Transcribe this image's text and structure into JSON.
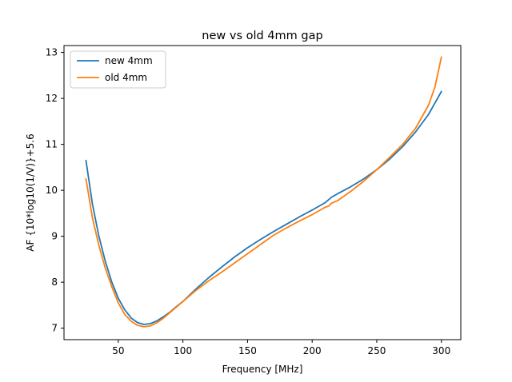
{
  "chart_data": {
    "type": "line",
    "title": "new vs old 4mm gap",
    "xlabel": "Frequency [MHz]",
    "ylabel": "AF {10*log10(1/V)}+5.6",
    "xlim": [
      8,
      315
    ],
    "ylim": [
      6.75,
      13.15
    ],
    "xticks": [
      50,
      100,
      150,
      200,
      250,
      300
    ],
    "yticks": [
      7,
      8,
      9,
      10,
      11,
      12,
      13
    ],
    "grid": false,
    "legend_position": "top-left",
    "series": [
      {
        "name": "new 4mm",
        "color": "#1f77b4",
        "x": [
          25,
          30,
          35,
          40,
          45,
          50,
          55,
          60,
          65,
          70,
          75,
          80,
          85,
          90,
          95,
          100,
          110,
          120,
          130,
          140,
          150,
          160,
          170,
          180,
          190,
          200,
          210,
          215,
          220,
          230,
          240,
          250,
          260,
          270,
          280,
          290,
          300
        ],
        "y": [
          10.65,
          9.7,
          9.0,
          8.45,
          8.0,
          7.65,
          7.4,
          7.22,
          7.12,
          7.08,
          7.1,
          7.16,
          7.25,
          7.35,
          7.47,
          7.58,
          7.85,
          8.1,
          8.33,
          8.55,
          8.75,
          8.93,
          9.1,
          9.26,
          9.42,
          9.57,
          9.73,
          9.85,
          9.93,
          10.08,
          10.25,
          10.45,
          10.68,
          10.95,
          11.27,
          11.65,
          12.15
        ]
      },
      {
        "name": "old 4mm",
        "color": "#ff7f0e",
        "x": [
          25,
          30,
          35,
          40,
          45,
          50,
          55,
          60,
          65,
          70,
          75,
          80,
          85,
          90,
          95,
          100,
          110,
          120,
          130,
          140,
          150,
          160,
          170,
          180,
          190,
          200,
          205,
          210,
          213,
          215,
          220,
          230,
          240,
          250,
          260,
          270,
          280,
          290,
          295,
          300
        ],
        "y": [
          10.25,
          9.4,
          8.8,
          8.3,
          7.9,
          7.55,
          7.3,
          7.15,
          7.06,
          7.03,
          7.05,
          7.12,
          7.22,
          7.34,
          7.46,
          7.58,
          7.82,
          8.03,
          8.22,
          8.42,
          8.62,
          8.82,
          9.02,
          9.18,
          9.33,
          9.47,
          9.55,
          9.63,
          9.66,
          9.72,
          9.78,
          9.98,
          10.2,
          10.45,
          10.72,
          11.0,
          11.35,
          11.85,
          12.25,
          12.9
        ]
      }
    ]
  }
}
